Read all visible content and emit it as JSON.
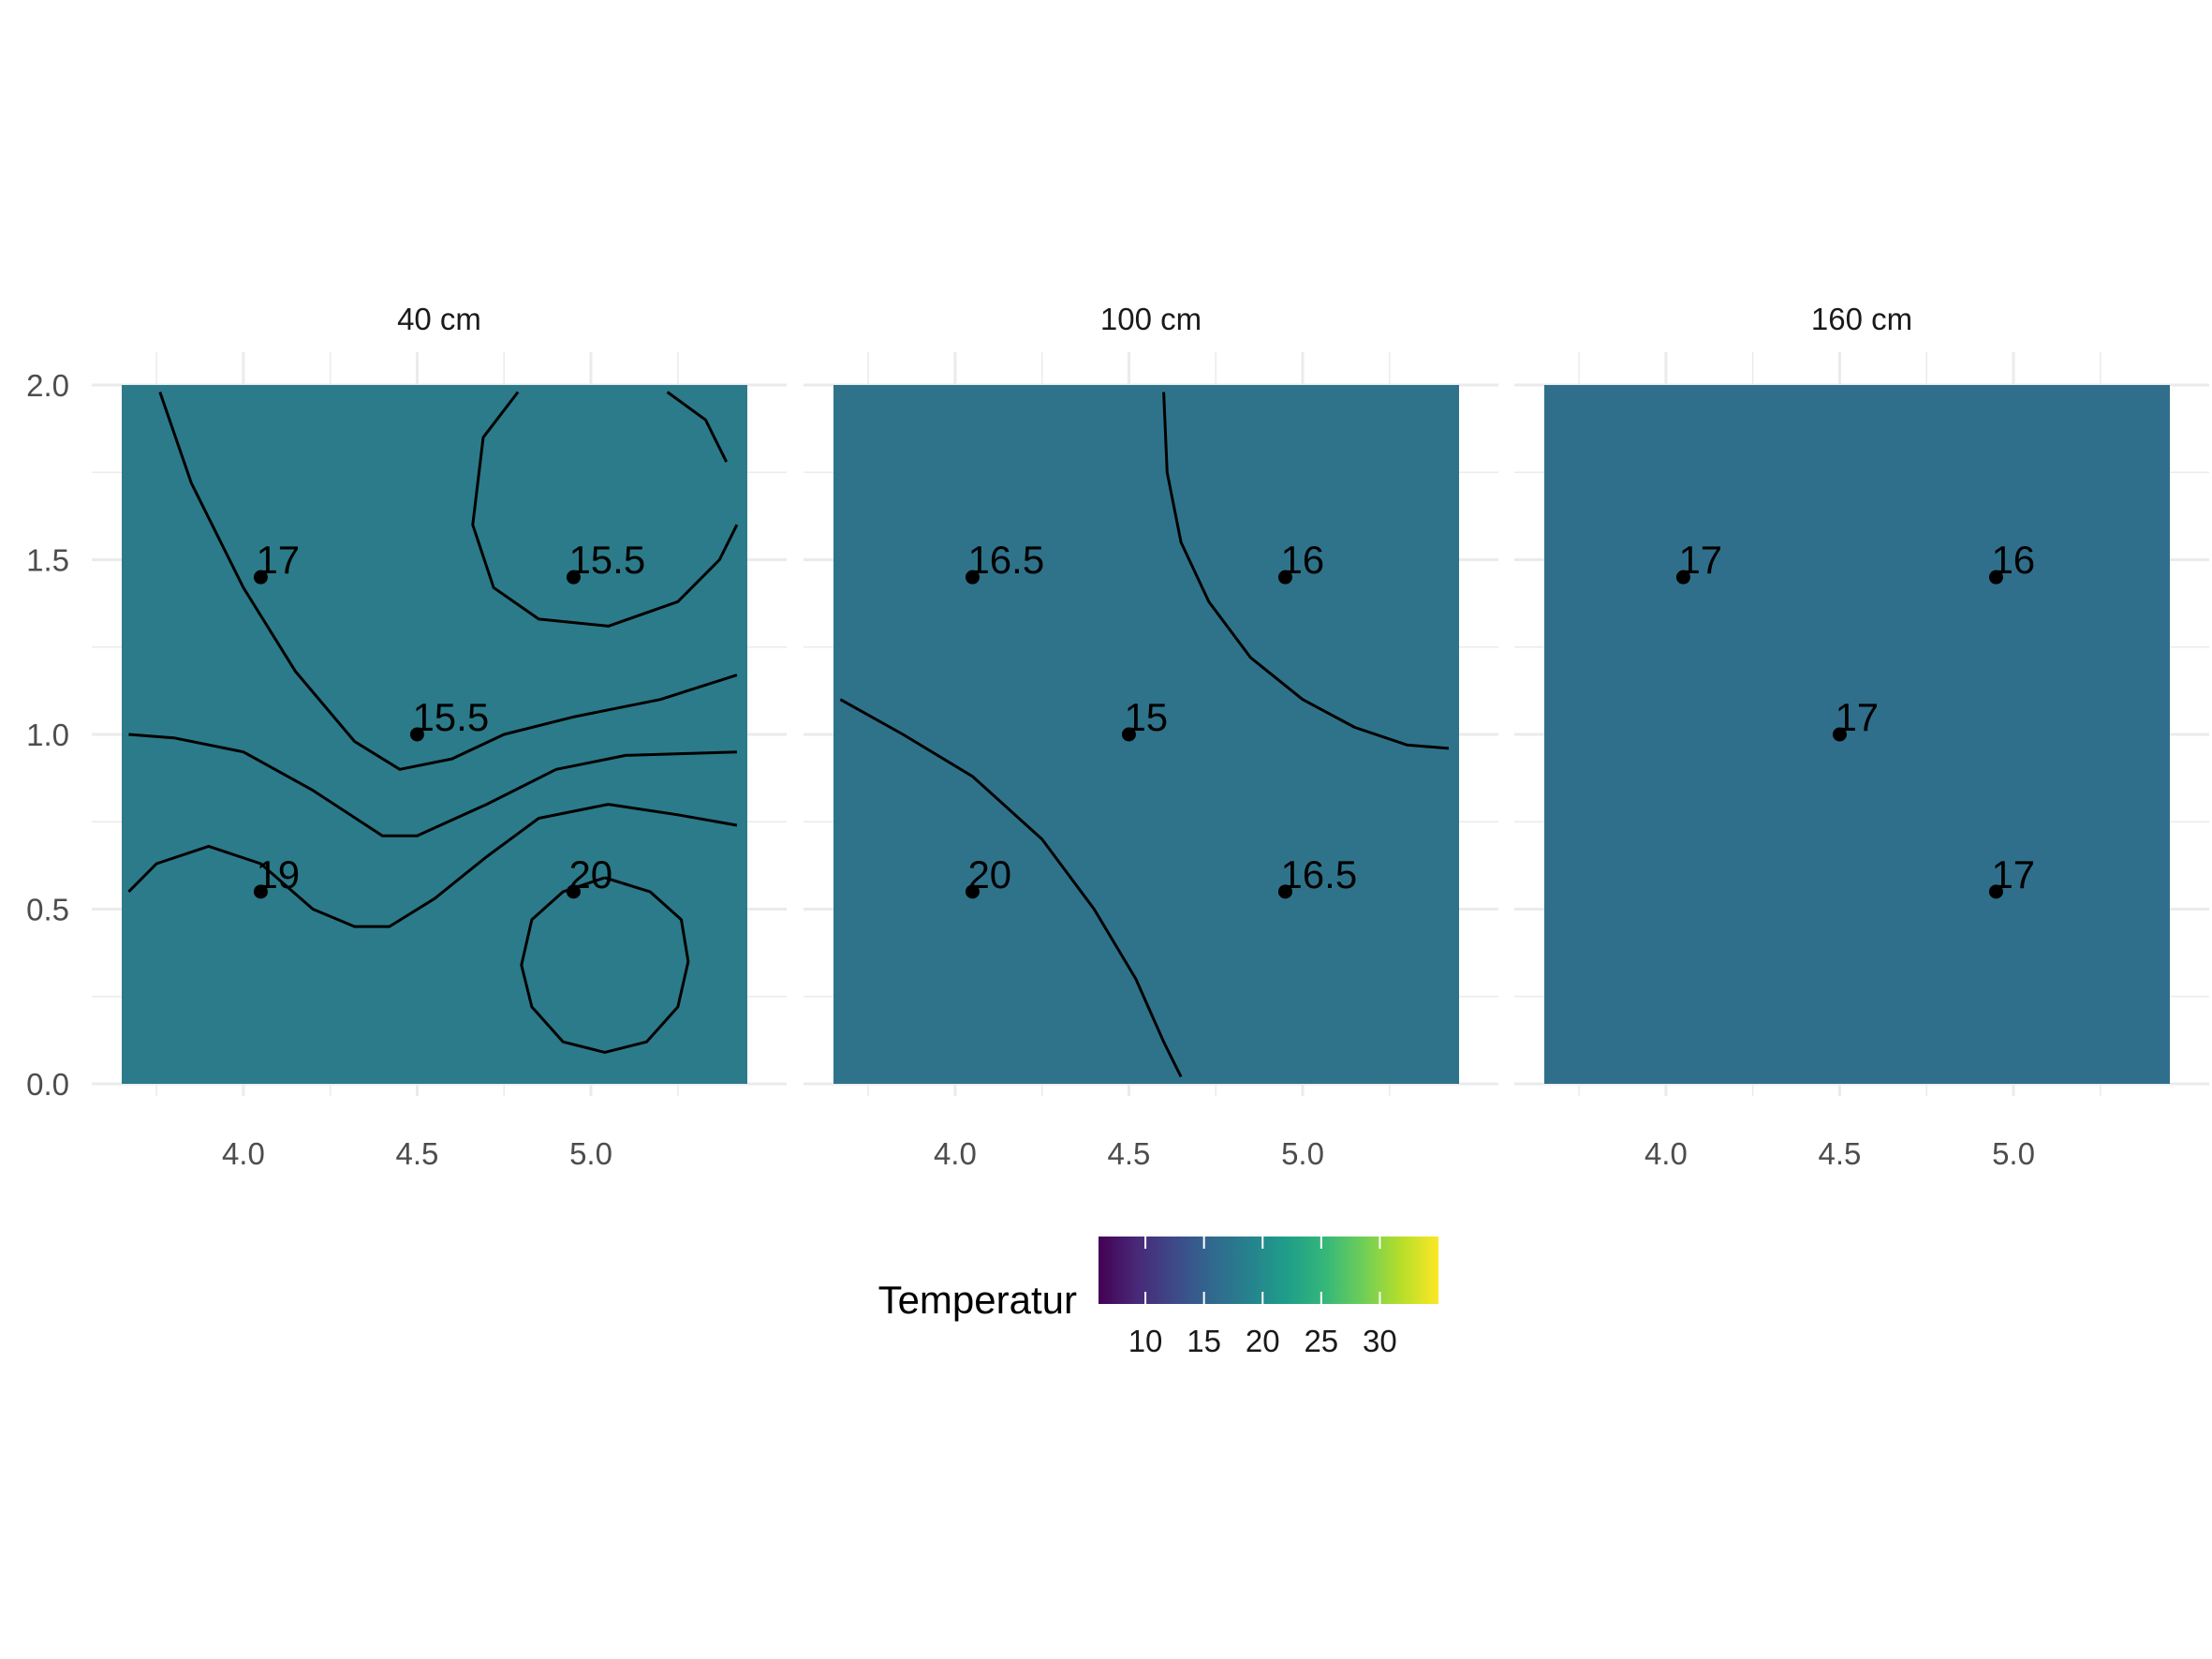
{
  "chart_data": {
    "type": "heatmap",
    "title": "",
    "xlabel": "",
    "ylabel": "",
    "xlim": [
      3.65,
      5.45
    ],
    "ylim": [
      0.0,
      2.0
    ],
    "x_ticks": [
      "4.0",
      "4.5",
      "5.0"
    ],
    "x_tick_values": [
      4.0,
      4.5,
      5.0
    ],
    "y_ticks": [
      "0.0",
      "0.5",
      "1.0",
      "1.5",
      "2.0"
    ],
    "y_tick_values": [
      0.0,
      0.5,
      1.0,
      1.5,
      2.0
    ],
    "grid": true,
    "facets": [
      {
        "label": "40 cm",
        "fill_color": "#2c7b8a",
        "points": [
          {
            "x": 4.05,
            "y": 1.45,
            "label": "17"
          },
          {
            "x": 4.95,
            "y": 1.45,
            "label": "15.5"
          },
          {
            "x": 4.5,
            "y": 1.0,
            "label": "15.5"
          },
          {
            "x": 4.05,
            "y": 0.55,
            "label": "19"
          },
          {
            "x": 4.95,
            "y": 0.55,
            "label": "20"
          }
        ],
        "contours": [
          [
            [
              3.76,
              1.98
            ],
            [
              3.85,
              1.72
            ],
            [
              4.0,
              1.42
            ],
            [
              4.15,
              1.18
            ],
            [
              4.32,
              0.98
            ],
            [
              4.45,
              0.9
            ],
            [
              4.6,
              0.93
            ],
            [
              4.75,
              1.0
            ],
            [
              4.95,
              1.05
            ],
            [
              5.2,
              1.1
            ],
            [
              5.42,
              1.17
            ]
          ],
          [
            [
              3.67,
              1.0
            ],
            [
              3.8,
              0.99
            ],
            [
              4.0,
              0.95
            ],
            [
              4.2,
              0.84
            ],
            [
              4.4,
              0.71
            ],
            [
              4.5,
              0.71
            ],
            [
              4.7,
              0.8
            ],
            [
              4.9,
              0.9
            ],
            [
              5.1,
              0.94
            ],
            [
              5.42,
              0.95
            ]
          ],
          [
            [
              3.67,
              0.55
            ],
            [
              3.75,
              0.63
            ],
            [
              3.9,
              0.68
            ],
            [
              4.05,
              0.63
            ],
            [
              4.2,
              0.5
            ],
            [
              4.32,
              0.45
            ],
            [
              4.42,
              0.45
            ],
            [
              4.55,
              0.53
            ],
            [
              4.7,
              0.65
            ],
            [
              4.85,
              0.76
            ],
            [
              5.05,
              0.8
            ],
            [
              5.25,
              0.77
            ],
            [
              5.42,
              0.74
            ]
          ],
          [
            [
              4.79,
              1.98
            ],
            [
              4.69,
              1.85
            ],
            [
              4.66,
              1.6
            ],
            [
              4.72,
              1.42
            ],
            [
              4.85,
              1.33
            ],
            [
              5.05,
              1.31
            ],
            [
              5.25,
              1.38
            ],
            [
              5.37,
              1.5
            ],
            [
              5.42,
              1.6
            ]
          ],
          [
            [
              5.22,
              1.98
            ],
            [
              5.33,
              1.9
            ],
            [
              5.39,
              1.78
            ]
          ],
          [
            [
              5.04,
              0.59
            ],
            [
              5.17,
              0.55
            ],
            [
              5.26,
              0.47
            ],
            [
              5.28,
              0.35
            ],
            [
              5.25,
              0.22
            ],
            [
              5.16,
              0.12
            ],
            [
              5.04,
              0.09
            ],
            [
              4.92,
              0.12
            ],
            [
              4.83,
              0.22
            ],
            [
              4.8,
              0.34
            ],
            [
              4.83,
              0.47
            ],
            [
              4.92,
              0.55
            ],
            [
              5.04,
              0.59
            ]
          ]
        ]
      },
      {
        "label": "100 cm",
        "fill_color": "#2f738b",
        "points": [
          {
            "x": 4.05,
            "y": 1.45,
            "label": "16.5"
          },
          {
            "x": 4.95,
            "y": 1.45,
            "label": "16"
          },
          {
            "x": 4.5,
            "y": 1.0,
            "label": "15"
          },
          {
            "x": 4.05,
            "y": 0.55,
            "label": "20"
          },
          {
            "x": 4.95,
            "y": 0.55,
            "label": "16.5"
          }
        ],
        "contours": [
          [
            [
              4.6,
              1.98
            ],
            [
              4.61,
              1.75
            ],
            [
              4.65,
              1.55
            ],
            [
              4.73,
              1.38
            ],
            [
              4.85,
              1.22
            ],
            [
              5.0,
              1.1
            ],
            [
              5.15,
              1.02
            ],
            [
              5.3,
              0.97
            ],
            [
              5.42,
              0.96
            ]
          ],
          [
            [
              3.67,
              1.1
            ],
            [
              3.85,
              1.0
            ],
            [
              4.05,
              0.88
            ],
            [
              4.25,
              0.7
            ],
            [
              4.4,
              0.5
            ],
            [
              4.52,
              0.3
            ],
            [
              4.6,
              0.12
            ],
            [
              4.65,
              0.02
            ]
          ]
        ]
      },
      {
        "label": "160 cm",
        "fill_color": "#306f8b",
        "points": [
          {
            "x": 4.05,
            "y": 1.45,
            "label": "17"
          },
          {
            "x": 4.95,
            "y": 1.45,
            "label": "16"
          },
          {
            "x": 4.5,
            "y": 1.0,
            "label": "17"
          },
          {
            "x": 4.95,
            "y": 0.55,
            "label": "17"
          }
        ],
        "contours": []
      }
    ],
    "legend": {
      "title": "Temperatur",
      "position": "bottom",
      "range": [
        6,
        35
      ],
      "ticks": [
        10,
        15,
        20,
        25,
        30
      ],
      "tick_labels": [
        "10",
        "15",
        "20",
        "25",
        "30"
      ],
      "colors": [
        "#440154",
        "#482878",
        "#3e4989",
        "#31688e",
        "#26828e",
        "#1f9e89",
        "#35b779",
        "#6ece58",
        "#b5de2b",
        "#fde725"
      ]
    }
  }
}
